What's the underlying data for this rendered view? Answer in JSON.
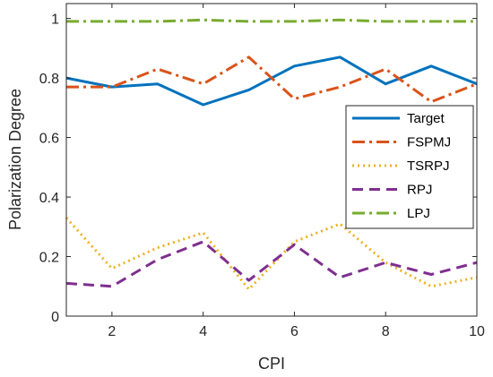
{
  "chart_data": {
    "type": "line",
    "title": "",
    "xlabel": "CPI",
    "ylabel": "Polarization Degree",
    "xlim": [
      1,
      10
    ],
    "ylim": [
      0,
      1.05
    ],
    "xticks": [
      2,
      4,
      6,
      8,
      10
    ],
    "yticks": [
      0,
      0.2,
      0.4,
      0.6,
      0.8,
      1
    ],
    "x": [
      1,
      2,
      3,
      4,
      5,
      6,
      7,
      8,
      9,
      10
    ],
    "grid": false,
    "legend_position": "right",
    "series": [
      {
        "name": "Target",
        "color": "#0072BD",
        "dash": "solid",
        "values": [
          0.8,
          0.77,
          0.78,
          0.71,
          0.76,
          0.84,
          0.87,
          0.78,
          0.84,
          0.78
        ]
      },
      {
        "name": "FSPMJ",
        "color": "#D95319",
        "dash": "dashdot",
        "values": [
          0.77,
          0.77,
          0.83,
          0.78,
          0.87,
          0.73,
          0.77,
          0.83,
          0.72,
          0.78
        ]
      },
      {
        "name": "TSRPJ",
        "color": "#EDB120",
        "dash": "dotted",
        "values": [
          0.33,
          0.16,
          0.23,
          0.28,
          0.09,
          0.25,
          0.31,
          0.18,
          0.1,
          0.13
        ]
      },
      {
        "name": "RPJ",
        "color": "#7E2F8E",
        "dash": "dashed",
        "values": [
          0.11,
          0.1,
          0.19,
          0.25,
          0.12,
          0.24,
          0.13,
          0.18,
          0.14,
          0.18
        ]
      },
      {
        "name": "LPJ",
        "color": "#77AC30",
        "dash": "dashdot",
        "values": [
          0.99,
          0.99,
          0.99,
          0.995,
          0.99,
          0.99,
          0.995,
          0.99,
          0.99,
          0.99
        ]
      }
    ]
  }
}
